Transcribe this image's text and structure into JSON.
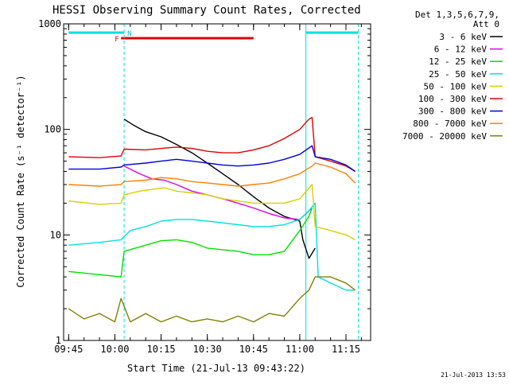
{
  "chart_data": {
    "type": "line",
    "title": "HESSI Observing Summary Count Rates, Corrected",
    "xlabel": "Start Time (21-Jul-13 09:43:22)",
    "ylabel": "Corrected Count Rate (s⁻¹ detector⁻¹)",
    "y_scale": "log",
    "ylim": [
      1,
      1000
    ],
    "xlim": [
      "09:43:22",
      "11:23:00"
    ],
    "x_ticks": [
      "09:45",
      "10:00",
      "10:15",
      "10:30",
      "10:45",
      "11:00",
      "11:15"
    ],
    "y_ticks": [
      "1",
      "10",
      "100",
      "1000"
    ],
    "legend_header": [
      "Det 1,3,5,6,7,9,",
      "Att 0"
    ],
    "legend_position": "right",
    "timestamp": "21-Jul-2013 13:53",
    "flag_labels": {
      "F": "F",
      "N": "N"
    },
    "flags": {
      "night_cyan": [
        [
          "09:45",
          "10:03"
        ],
        [
          "11:02",
          "11:19"
        ]
      ],
      "flare_red": [
        [
          "10:02",
          "10:45"
        ]
      ],
      "dashed_lines": [
        "10:03",
        "11:19"
      ],
      "solid_lines": [
        "11:02"
      ]
    },
    "series": [
      {
        "name": "3 - 6 keV",
        "color": "#000000",
        "points": [
          [
            "10:03",
            125
          ],
          [
            "10:06",
            110
          ],
          [
            "10:10",
            95
          ],
          [
            "10:15",
            85
          ],
          [
            "10:20",
            72
          ],
          [
            "10:25",
            60
          ],
          [
            "10:30",
            48
          ],
          [
            "10:35",
            38
          ],
          [
            "10:40",
            30
          ],
          [
            "10:45",
            23
          ],
          [
            "10:50",
            18
          ],
          [
            "10:55",
            15
          ],
          [
            "11:00",
            13.5
          ],
          [
            "11:01",
            9
          ],
          [
            "11:03",
            6
          ],
          [
            "11:05",
            7.5
          ]
        ]
      },
      {
        "name": "6 - 12 keV",
        "color": "#e000e0",
        "points": [
          [
            "10:03",
            45
          ],
          [
            "10:08",
            38
          ],
          [
            "10:12",
            34
          ],
          [
            "10:16",
            33
          ],
          [
            "10:20",
            30
          ],
          [
            "10:25",
            26
          ],
          [
            "10:30",
            24
          ],
          [
            "10:35",
            22
          ],
          [
            "10:40",
            20
          ],
          [
            "10:45",
            18
          ],
          [
            "10:50",
            16
          ],
          [
            "10:55",
            14.5
          ],
          [
            "11:00",
            14
          ],
          [
            "11:04",
            18
          ]
        ]
      },
      {
        "name": "12 - 25 keV",
        "color": "#00e000",
        "points": [
          [
            "09:45",
            4.5
          ],
          [
            "09:55",
            4.2
          ],
          [
            "10:02",
            4
          ],
          [
            "10:03",
            7
          ],
          [
            "10:10",
            8
          ],
          [
            "10:15",
            8.8
          ],
          [
            "10:20",
            9
          ],
          [
            "10:25",
            8.5
          ],
          [
            "10:30",
            7.5
          ],
          [
            "10:40",
            7
          ],
          [
            "10:45",
            6.5
          ],
          [
            "10:50",
            6.5
          ],
          [
            "10:55",
            7
          ],
          [
            "11:00",
            11
          ],
          [
            "11:03",
            15
          ],
          [
            "11:04",
            18
          ]
        ]
      },
      {
        "name": "25 - 50 keV",
        "color": "#00e0e0",
        "points": [
          [
            "09:45",
            8
          ],
          [
            "09:55",
            8.5
          ],
          [
            "10:02",
            9
          ],
          [
            "10:05",
            11
          ],
          [
            "10:10",
            12
          ],
          [
            "10:15",
            13.5
          ],
          [
            "10:20",
            14
          ],
          [
            "10:25",
            14
          ],
          [
            "10:30",
            13.5
          ],
          [
            "10:35",
            13
          ],
          [
            "10:40",
            12.5
          ],
          [
            "10:45",
            12
          ],
          [
            "10:50",
            12
          ],
          [
            "10:55",
            12.5
          ],
          [
            "11:00",
            14
          ],
          [
            "11:03",
            17
          ],
          [
            "11:05",
            20
          ],
          [
            "11:06",
            4
          ],
          [
            "11:10",
            3.5
          ],
          [
            "11:15",
            3
          ],
          [
            "11:18",
            3
          ]
        ]
      },
      {
        "name": "50 - 100 keV",
        "color": "#d8d000",
        "points": [
          [
            "09:45",
            21
          ],
          [
            "09:55",
            19.5
          ],
          [
            "10:02",
            20
          ],
          [
            "10:03",
            24
          ],
          [
            "10:08",
            26
          ],
          [
            "10:12",
            27
          ],
          [
            "10:16",
            28
          ],
          [
            "10:20",
            26
          ],
          [
            "10:25",
            25
          ],
          [
            "10:30",
            24
          ],
          [
            "10:35",
            22
          ],
          [
            "10:40",
            21
          ],
          [
            "10:45",
            20
          ],
          [
            "10:50",
            20
          ],
          [
            "10:55",
            20
          ],
          [
            "11:00",
            22
          ],
          [
            "11:04",
            30
          ],
          [
            "11:05",
            12
          ],
          [
            "11:10",
            11
          ],
          [
            "11:15",
            10
          ],
          [
            "11:18",
            9
          ]
        ]
      },
      {
        "name": "100 - 300 keV",
        "color": "#e00000",
        "points": [
          [
            "09:45",
            55
          ],
          [
            "09:55",
            54
          ],
          [
            "10:02",
            56
          ],
          [
            "10:03",
            65
          ],
          [
            "10:10",
            64
          ],
          [
            "10:15",
            66
          ],
          [
            "10:20",
            68
          ],
          [
            "10:25",
            66
          ],
          [
            "10:30",
            62
          ],
          [
            "10:35",
            60
          ],
          [
            "10:40",
            60
          ],
          [
            "10:45",
            64
          ],
          [
            "10:50",
            70
          ],
          [
            "10:55",
            82
          ],
          [
            "11:00",
            100
          ],
          [
            "11:03",
            125
          ],
          [
            "11:04",
            130
          ],
          [
            "11:05",
            55
          ],
          [
            "11:10",
            50
          ],
          [
            "11:15",
            45
          ],
          [
            "11:18",
            40
          ]
        ]
      },
      {
        "name": "300 - 800 keV",
        "color": "#0000e0",
        "points": [
          [
            "09:45",
            42
          ],
          [
            "09:55",
            42
          ],
          [
            "10:02",
            44
          ],
          [
            "10:03",
            46
          ],
          [
            "10:10",
            48
          ],
          [
            "10:15",
            50
          ],
          [
            "10:20",
            52
          ],
          [
            "10:25",
            50
          ],
          [
            "10:30",
            48
          ],
          [
            "10:35",
            46
          ],
          [
            "10:40",
            45
          ],
          [
            "10:45",
            46
          ],
          [
            "10:50",
            48
          ],
          [
            "10:55",
            52
          ],
          [
            "11:00",
            58
          ],
          [
            "11:04",
            70
          ],
          [
            "11:05",
            55
          ],
          [
            "11:10",
            52
          ],
          [
            "11:15",
            46
          ],
          [
            "11:18",
            40
          ]
        ]
      },
      {
        "name": "800 - 7000 keV",
        "color": "#ff8000",
        "points": [
          [
            "09:45",
            30
          ],
          [
            "09:55",
            29
          ],
          [
            "10:02",
            30
          ],
          [
            "10:03",
            32
          ],
          [
            "10:10",
            33
          ],
          [
            "10:15",
            35
          ],
          [
            "10:20",
            34
          ],
          [
            "10:25",
            32
          ],
          [
            "10:30",
            31
          ],
          [
            "10:35",
            30
          ],
          [
            "10:40",
            29
          ],
          [
            "10:45",
            30
          ],
          [
            "10:50",
            31
          ],
          [
            "10:55",
            34
          ],
          [
            "11:00",
            38
          ],
          [
            "11:04",
            45
          ],
          [
            "11:05",
            48
          ],
          [
            "11:10",
            44
          ],
          [
            "11:15",
            38
          ],
          [
            "11:18",
            31
          ]
        ]
      },
      {
        "name": "7000 - 20000 keV",
        "color": "#808000",
        "points": [
          [
            "09:45",
            2
          ],
          [
            "09:50",
            1.6
          ],
          [
            "09:55",
            1.8
          ],
          [
            "10:00",
            1.5
          ],
          [
            "10:02",
            2.5
          ],
          [
            "10:05",
            1.5
          ],
          [
            "10:10",
            1.8
          ],
          [
            "10:15",
            1.5
          ],
          [
            "10:20",
            1.7
          ],
          [
            "10:25",
            1.5
          ],
          [
            "10:30",
            1.6
          ],
          [
            "10:35",
            1.5
          ],
          [
            "10:40",
            1.7
          ],
          [
            "10:45",
            1.5
          ],
          [
            "10:50",
            1.8
          ],
          [
            "10:55",
            1.7
          ],
          [
            "11:00",
            2.5
          ],
          [
            "11:03",
            3
          ],
          [
            "11:05",
            4
          ],
          [
            "11:10",
            4
          ],
          [
            "11:15",
            3.5
          ],
          [
            "11:18",
            3
          ]
        ]
      }
    ]
  }
}
